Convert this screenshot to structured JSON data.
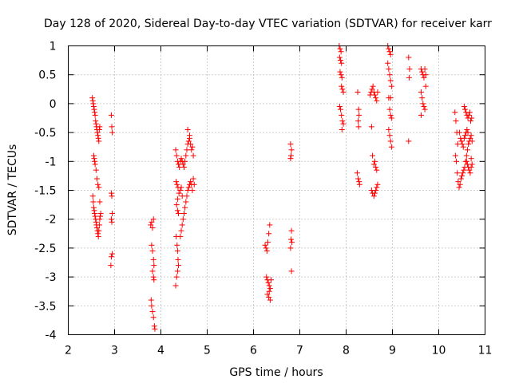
{
  "chart_data": {
    "type": "scatter",
    "title": "Day 128 of 2020, Sidereal Day-to-day VTEC variation (SDTVAR) for receiver karr",
    "xlabel": "GPS time / hours",
    "ylabel": "SDTVAR / TECUs",
    "xlim": [
      2,
      11
    ],
    "ylim": [
      -4,
      1
    ],
    "xticks": [
      "2",
      "3",
      "4",
      "5",
      "6",
      "7",
      "8",
      "9",
      "10",
      "11"
    ],
    "yticks": [
      "1",
      "0.5",
      "0",
      "-0.5",
      "-1",
      "-1.5",
      "-2",
      "-2.5",
      "-3",
      "-3.5",
      "-4"
    ],
    "grid": true,
    "marker": "+",
    "marker_color": "#ff0000",
    "series": [
      {
        "name": "SDTVAR",
        "points": [
          [
            2.52,
            0.1
          ],
          [
            2.53,
            0.05
          ],
          [
            2.54,
            0.0
          ],
          [
            2.55,
            -0.05
          ],
          [
            2.56,
            -0.1
          ],
          [
            2.57,
            -0.15
          ],
          [
            2.58,
            -0.2
          ],
          [
            2.59,
            -0.3
          ],
          [
            2.6,
            -0.35
          ],
          [
            2.61,
            -0.4
          ],
          [
            2.62,
            -0.45
          ],
          [
            2.63,
            -0.5
          ],
          [
            2.64,
            -0.55
          ],
          [
            2.65,
            -0.6
          ],
          [
            2.66,
            -0.65
          ],
          [
            2.67,
            -0.45
          ],
          [
            2.68,
            -0.4
          ],
          [
            2.55,
            -0.9
          ],
          [
            2.56,
            -0.95
          ],
          [
            2.57,
            -1.0
          ],
          [
            2.58,
            -1.05
          ],
          [
            2.6,
            -1.15
          ],
          [
            2.62,
            -1.3
          ],
          [
            2.64,
            -1.4
          ],
          [
            2.66,
            -1.45
          ],
          [
            2.53,
            -1.6
          ],
          [
            2.54,
            -1.7
          ],
          [
            2.55,
            -1.8
          ],
          [
            2.56,
            -1.85
          ],
          [
            2.57,
            -1.9
          ],
          [
            2.58,
            -1.95
          ],
          [
            2.59,
            -2.0
          ],
          [
            2.6,
            -2.05
          ],
          [
            2.61,
            -2.1
          ],
          [
            2.62,
            -2.15
          ],
          [
            2.63,
            -2.2
          ],
          [
            2.64,
            -2.25
          ],
          [
            2.65,
            -2.3
          ],
          [
            2.66,
            -2.2
          ],
          [
            2.67,
            -2.1
          ],
          [
            2.68,
            -2.0
          ],
          [
            2.69,
            -1.95
          ],
          [
            2.7,
            -1.9
          ],
          [
            2.68,
            -1.7
          ],
          [
            2.93,
            -0.2
          ],
          [
            2.94,
            -0.4
          ],
          [
            2.95,
            -0.5
          ],
          [
            2.93,
            -1.55
          ],
          [
            2.94,
            -1.6
          ],
          [
            2.95,
            -1.9
          ],
          [
            2.93,
            -2.0
          ],
          [
            2.94,
            -2.05
          ],
          [
            2.95,
            -2.6
          ],
          [
            2.93,
            -2.65
          ],
          [
            2.92,
            -2.8
          ],
          [
            3.78,
            -2.1
          ],
          [
            3.8,
            -2.05
          ],
          [
            3.82,
            -2.15
          ],
          [
            3.84,
            -2.0
          ],
          [
            3.8,
            -2.45
          ],
          [
            3.82,
            -2.55
          ],
          [
            3.84,
            -2.7
          ],
          [
            3.85,
            -2.8
          ],
          [
            3.82,
            -2.9
          ],
          [
            3.84,
            -3.0
          ],
          [
            3.85,
            -3.05
          ],
          [
            3.79,
            -3.4
          ],
          [
            3.8,
            -3.5
          ],
          [
            3.82,
            -3.6
          ],
          [
            3.84,
            -3.7
          ],
          [
            3.86,
            -3.85
          ],
          [
            3.87,
            -3.9
          ],
          [
            4.32,
            -0.8
          ],
          [
            4.34,
            -0.9
          ],
          [
            4.36,
            -1.0
          ],
          [
            4.38,
            -1.05
          ],
          [
            4.4,
            -1.1
          ],
          [
            4.42,
            -1.0
          ],
          [
            4.44,
            -0.95
          ],
          [
            4.46,
            -1.0
          ],
          [
            4.48,
            -1.05
          ],
          [
            4.5,
            -1.1
          ],
          [
            4.52,
            -1.0
          ],
          [
            4.54,
            -0.9
          ],
          [
            4.56,
            -0.8
          ],
          [
            4.58,
            -0.7
          ],
          [
            4.6,
            -0.65
          ],
          [
            4.62,
            -0.6
          ],
          [
            4.64,
            -0.7
          ],
          [
            4.66,
            -0.8
          ],
          [
            4.68,
            -0.75
          ],
          [
            4.7,
            -0.9
          ],
          [
            4.58,
            -0.45
          ],
          [
            4.62,
            -0.55
          ],
          [
            4.33,
            -1.35
          ],
          [
            4.35,
            -1.4
          ],
          [
            4.37,
            -1.45
          ],
          [
            4.39,
            -1.55
          ],
          [
            4.36,
            -1.65
          ],
          [
            4.34,
            -1.75
          ],
          [
            4.36,
            -1.85
          ],
          [
            4.38,
            -1.9
          ],
          [
            4.42,
            -1.5
          ],
          [
            4.44,
            -1.45
          ],
          [
            4.46,
            -1.6
          ],
          [
            4.33,
            -2.3
          ],
          [
            4.35,
            -2.45
          ],
          [
            4.36,
            -2.55
          ],
          [
            4.37,
            -2.7
          ],
          [
            4.38,
            -2.8
          ],
          [
            4.36,
            -2.9
          ],
          [
            4.34,
            -3.0
          ],
          [
            4.32,
            -3.15
          ],
          [
            4.42,
            -2.3
          ],
          [
            4.44,
            -2.2
          ],
          [
            4.46,
            -2.1
          ],
          [
            4.48,
            -2.0
          ],
          [
            4.5,
            -1.9
          ],
          [
            4.52,
            -1.8
          ],
          [
            4.54,
            -1.7
          ],
          [
            4.56,
            -1.6
          ],
          [
            4.58,
            -1.5
          ],
          [
            4.6,
            -1.45
          ],
          [
            4.62,
            -1.4
          ],
          [
            4.64,
            -1.35
          ],
          [
            4.66,
            -1.4
          ],
          [
            4.68,
            -1.5
          ],
          [
            4.7,
            -1.3
          ],
          [
            4.72,
            -1.4
          ],
          [
            6.25,
            -2.45
          ],
          [
            6.27,
            -2.5
          ],
          [
            6.29,
            -2.55
          ],
          [
            6.31,
            -2.4
          ],
          [
            6.33,
            -2.25
          ],
          [
            6.35,
            -2.1
          ],
          [
            6.28,
            -3.0
          ],
          [
            6.3,
            -3.05
          ],
          [
            6.32,
            -3.1
          ],
          [
            6.34,
            -3.15
          ],
          [
            6.36,
            -3.2
          ],
          [
            6.3,
            -3.3
          ],
          [
            6.33,
            -3.35
          ],
          [
            6.36,
            -3.4
          ],
          [
            6.38,
            -3.05
          ],
          [
            6.34,
            -3.25
          ],
          [
            6.8,
            -0.7
          ],
          [
            6.82,
            -0.8
          ],
          [
            6.81,
            -0.9
          ],
          [
            6.8,
            -0.95
          ],
          [
            6.82,
            -2.2
          ],
          [
            6.81,
            -2.35
          ],
          [
            6.83,
            -2.4
          ],
          [
            6.8,
            -2.5
          ],
          [
            6.82,
            -2.9
          ],
          [
            7.85,
            1.0
          ],
          [
            7.87,
            0.95
          ],
          [
            7.89,
            0.9
          ],
          [
            7.86,
            0.8
          ],
          [
            7.88,
            0.75
          ],
          [
            7.9,
            0.7
          ],
          [
            7.87,
            0.55
          ],
          [
            7.89,
            0.5
          ],
          [
            7.91,
            0.45
          ],
          [
            7.9,
            0.3
          ],
          [
            7.92,
            0.25
          ],
          [
            7.94,
            0.2
          ],
          [
            7.86,
            -0.05
          ],
          [
            7.88,
            -0.1
          ],
          [
            7.9,
            -0.2
          ],
          [
            7.92,
            -0.3
          ],
          [
            7.94,
            -0.35
          ],
          [
            7.91,
            -0.45
          ],
          [
            8.25,
            0.2
          ],
          [
            8.27,
            -0.1
          ],
          [
            8.28,
            -0.2
          ],
          [
            8.26,
            -0.3
          ],
          [
            8.27,
            -0.4
          ],
          [
            8.24,
            -1.2
          ],
          [
            8.26,
            -1.3
          ],
          [
            8.28,
            -1.35
          ],
          [
            8.29,
            -1.4
          ],
          [
            8.52,
            0.15
          ],
          [
            8.54,
            0.2
          ],
          [
            8.56,
            0.25
          ],
          [
            8.58,
            0.3
          ],
          [
            8.6,
            0.2
          ],
          [
            8.62,
            0.15
          ],
          [
            8.64,
            0.1
          ],
          [
            8.66,
            0.05
          ],
          [
            8.68,
            0.2
          ],
          [
            8.55,
            -0.4
          ],
          [
            8.57,
            -0.9
          ],
          [
            8.6,
            -1.05
          ],
          [
            8.62,
            -1.0
          ],
          [
            8.64,
            -1.1
          ],
          [
            8.66,
            -1.15
          ],
          [
            8.55,
            -1.5
          ],
          [
            8.57,
            -1.55
          ],
          [
            8.6,
            -1.6
          ],
          [
            8.62,
            -1.55
          ],
          [
            8.64,
            -1.5
          ],
          [
            8.66,
            -1.45
          ],
          [
            8.68,
            -1.4
          ],
          [
            8.9,
            1.0
          ],
          [
            8.92,
            0.95
          ],
          [
            8.94,
            0.9
          ],
          [
            8.96,
            0.85
          ],
          [
            8.9,
            0.7
          ],
          [
            8.92,
            0.6
          ],
          [
            8.94,
            0.5
          ],
          [
            8.96,
            0.4
          ],
          [
            8.98,
            0.3
          ],
          [
            8.92,
            0.1
          ],
          [
            8.94,
            -0.1
          ],
          [
            8.96,
            -0.2
          ],
          [
            8.98,
            -0.25
          ],
          [
            8.92,
            -0.45
          ],
          [
            8.94,
            -0.55
          ],
          [
            8.96,
            -0.65
          ],
          [
            8.98,
            -0.75
          ],
          [
            8.96,
            0.1
          ],
          [
            9.35,
            0.8
          ],
          [
            9.37,
            0.6
          ],
          [
            9.36,
            0.45
          ],
          [
            9.35,
            -0.65
          ],
          [
            9.62,
            0.6
          ],
          [
            9.64,
            0.55
          ],
          [
            9.66,
            0.5
          ],
          [
            9.68,
            0.45
          ],
          [
            9.7,
            0.6
          ],
          [
            9.72,
            0.5
          ],
          [
            9.62,
            0.2
          ],
          [
            9.64,
            0.1
          ],
          [
            9.66,
            0.0
          ],
          [
            9.68,
            -0.05
          ],
          [
            9.7,
            -0.1
          ],
          [
            9.62,
            -0.2
          ],
          [
            9.72,
            0.3
          ],
          [
            10.35,
            -0.15
          ],
          [
            10.37,
            -0.3
          ],
          [
            10.39,
            -0.5
          ],
          [
            10.41,
            -0.7
          ],
          [
            10.36,
            -0.9
          ],
          [
            10.38,
            -1.0
          ],
          [
            10.4,
            -1.2
          ],
          [
            10.42,
            -1.35
          ],
          [
            10.44,
            -1.45
          ],
          [
            10.46,
            -1.4
          ],
          [
            10.48,
            -1.3
          ],
          [
            10.5,
            -1.25
          ],
          [
            10.52,
            -1.2
          ],
          [
            10.54,
            -1.15
          ],
          [
            10.56,
            -1.1
          ],
          [
            10.58,
            -1.0
          ],
          [
            10.6,
            -0.9
          ],
          [
            10.62,
            -0.8
          ],
          [
            10.64,
            -0.7
          ],
          [
            10.66,
            -0.65
          ],
          [
            10.68,
            -0.6
          ],
          [
            10.7,
            -0.55
          ],
          [
            10.72,
            -0.65
          ],
          [
            10.45,
            -0.5
          ],
          [
            10.47,
            -0.6
          ],
          [
            10.49,
            -0.65
          ],
          [
            10.51,
            -0.7
          ],
          [
            10.53,
            -0.75
          ],
          [
            10.55,
            -0.6
          ],
          [
            10.57,
            -0.55
          ],
          [
            10.59,
            -0.5
          ],
          [
            10.61,
            -0.45
          ],
          [
            10.63,
            -0.5
          ],
          [
            10.55,
            -0.05
          ],
          [
            10.57,
            -0.1
          ],
          [
            10.59,
            -0.15
          ],
          [
            10.61,
            -0.2
          ],
          [
            10.63,
            -0.25
          ],
          [
            10.65,
            -0.2
          ],
          [
            10.67,
            -0.15
          ],
          [
            10.69,
            -0.3
          ],
          [
            10.71,
            -0.25
          ],
          [
            10.6,
            -1.0
          ],
          [
            10.62,
            -1.05
          ],
          [
            10.64,
            -1.1
          ],
          [
            10.66,
            -1.15
          ],
          [
            10.68,
            -1.2
          ],
          [
            10.7,
            -1.1
          ],
          [
            10.72,
            -1.05
          ],
          [
            10.7,
            -0.95
          ]
        ]
      }
    ]
  }
}
